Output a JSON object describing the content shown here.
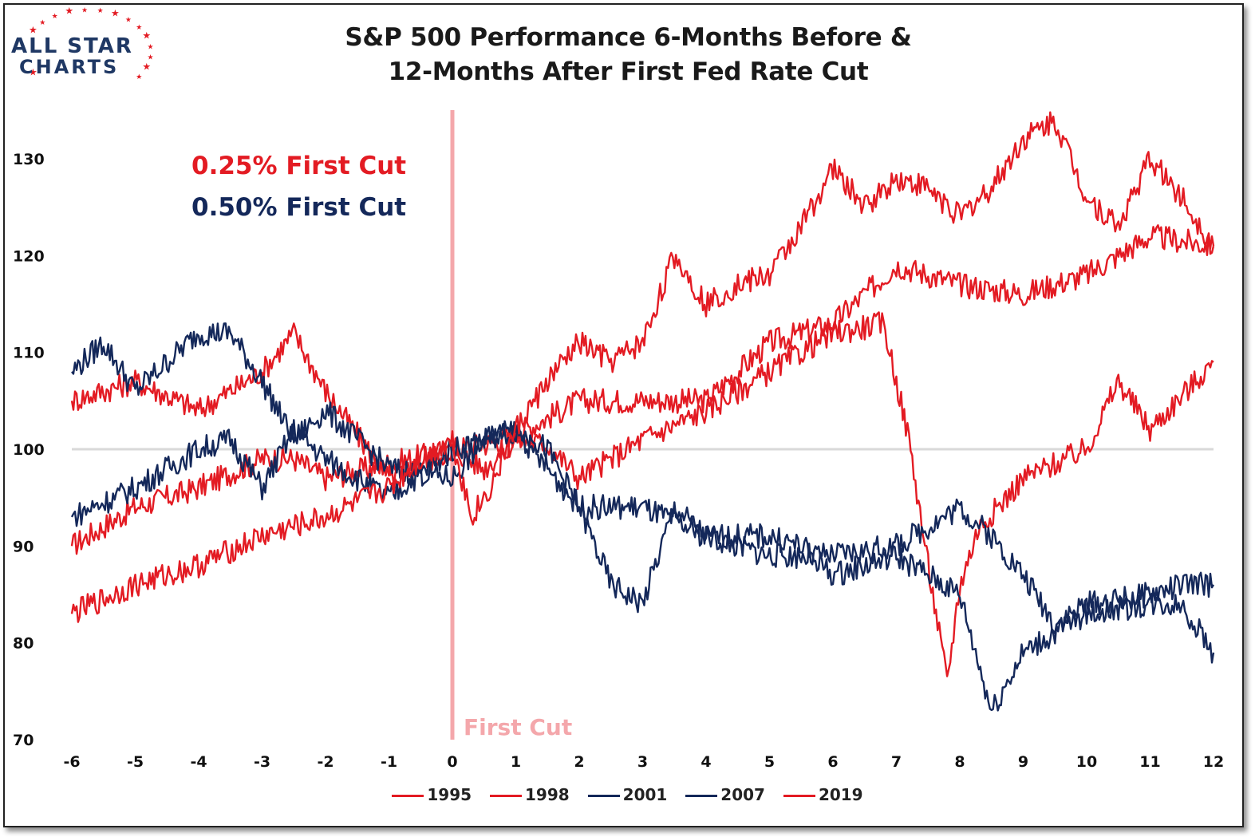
{
  "logo": {
    "line1": "ALL STAR",
    "line2": "CHARTS",
    "text_color": "#1f3864",
    "star_color": "#e31b23"
  },
  "title_line1": "S&P 500 Performance 6-Months Before &",
  "title_line2": "12-Months After First Fed Rate Cut",
  "annotations": {
    "cut_025": "0.25% First Cut",
    "cut_050": "0.50% First Cut",
    "first_cut": "First Cut",
    "color_025": "#e31b23",
    "color_050": "#14285a",
    "first_cut_color": "#f4a7ab"
  },
  "chart_data": {
    "type": "line",
    "title": "S&P 500 Performance 6-Months Before & 12-Months After First Fed Rate Cut",
    "xlabel": "",
    "ylabel": "",
    "xlim": [
      -6,
      12
    ],
    "ylim": [
      70,
      135
    ],
    "x_ticks": [
      "-6",
      "-5",
      "-4",
      "-3",
      "-2",
      "-1",
      "0",
      "1",
      "2",
      "3",
      "4",
      "5",
      "6",
      "7",
      "8",
      "9",
      "10",
      "11",
      "12"
    ],
    "y_ticks": [
      "70",
      "80",
      "90",
      "100",
      "110",
      "120",
      "130"
    ],
    "reference_line_y": 100,
    "vertical_marker_x": 0,
    "legend_position": "bottom",
    "grid": false,
    "series": [
      {
        "name": "1995",
        "color": "#e31b23",
        "x": [
          -6,
          -5,
          -4,
          -3,
          -2.5,
          -2,
          -1,
          0,
          0.5,
          1,
          2,
          3,
          4,
          5,
          6,
          7,
          8,
          9,
          10,
          11,
          12
        ],
        "y": [
          90,
          94,
          96,
          99,
          99,
          97,
          98.5,
          100,
          100.5,
          101.5,
          105,
          105,
          105,
          111,
          113,
          119,
          117,
          116,
          118,
          122,
          121
        ]
      },
      {
        "name": "1998",
        "color": "#e31b23",
        "x": [
          -6,
          -5,
          -4,
          -3,
          -2.5,
          -2,
          -1,
          0,
          0.5,
          1,
          1.5,
          2,
          3,
          4,
          5,
          6,
          6.8,
          7.2,
          7.5,
          7.8,
          8,
          8.3,
          8.6,
          9,
          10,
          10.5,
          11,
          12
        ],
        "y": [
          105,
          107,
          104,
          108,
          112,
          106,
          97,
          100,
          98,
          101,
          100.5,
          97,
          101,
          104,
          108,
          112,
          113,
          101,
          88,
          76,
          86,
          92,
          94,
          97,
          100,
          107,
          102,
          109
        ]
      },
      {
        "name": "2001",
        "color": "#14285a",
        "x": [
          -6,
          -5.5,
          -5,
          -4,
          -3.5,
          -3,
          -2.5,
          -2,
          -1,
          0,
          0.5,
          1,
          1.5,
          2,
          2.5,
          3,
          3.5,
          4,
          4.5,
          5,
          5.5,
          6,
          7,
          7.5,
          8,
          8.5,
          9,
          10,
          11,
          11.5,
          12
        ],
        "y": [
          108,
          111,
          106,
          112,
          112,
          107,
          101,
          104,
          98,
          97,
          101,
          102,
          100,
          94,
          86,
          84,
          94,
          91,
          91,
          91,
          90,
          87,
          89,
          87,
          85,
          73,
          79,
          83,
          84,
          84,
          79
        ]
      },
      {
        "name": "2007",
        "color": "#14285a",
        "x": [
          -6,
          -5,
          -4,
          -3.5,
          -3,
          -2.5,
          -2,
          -1,
          0,
          0.5,
          1,
          2,
          3,
          4,
          5,
          6,
          7,
          8,
          8.5,
          9,
          9.5,
          10,
          11,
          11.5,
          12
        ],
        "y": [
          93,
          96,
          100,
          101,
          96,
          102,
          99,
          95,
          100,
          101,
          102,
          94,
          94,
          91,
          89,
          89,
          90,
          94,
          91,
          87,
          82,
          84,
          85,
          86,
          86
        ]
      },
      {
        "name": "2019",
        "color": "#e31b23",
        "x": [
          -6,
          -5,
          -4,
          -3,
          -2,
          -1,
          -0.5,
          0,
          0.3,
          0.6,
          1,
          1.5,
          2,
          2.5,
          3,
          3.5,
          4,
          4.5,
          5,
          5.5,
          6,
          6.5,
          7,
          7.5,
          8,
          8.5,
          9,
          9.5,
          10,
          10.5,
          11,
          11.5,
          12
        ],
        "y": [
          83,
          86,
          88,
          91,
          93,
          96,
          99,
          101,
          93,
          96,
          102,
          107,
          111,
          109,
          111,
          120,
          115,
          117,
          118,
          123,
          129,
          125,
          128,
          127,
          124,
          127,
          132,
          134,
          126,
          123,
          130,
          126,
          121
        ]
      }
    ]
  },
  "legend": [
    "1995",
    "1998",
    "2001",
    "2007",
    "2019"
  ]
}
